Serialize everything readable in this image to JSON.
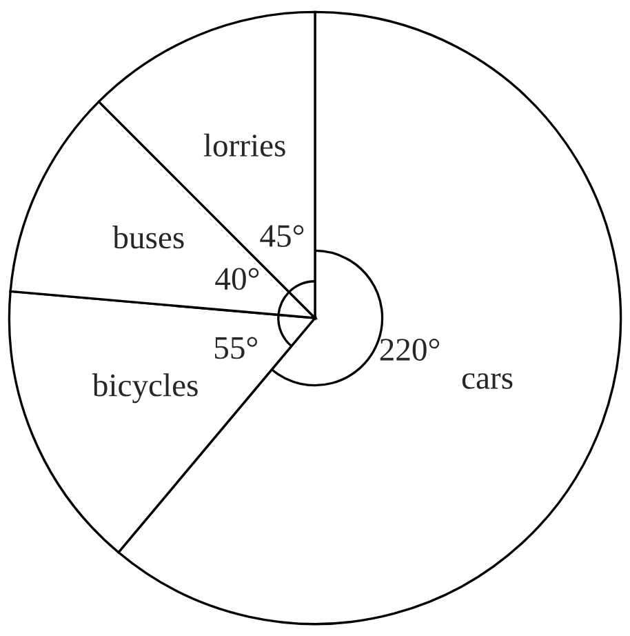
{
  "chart_data": {
    "type": "pie",
    "categories": [
      "cars",
      "bicycles",
      "buses",
      "lorries"
    ],
    "values": [
      220,
      55,
      40,
      45
    ],
    "colors": [
      "#ffffff",
      "#ffffff",
      "#ffffff",
      "#ffffff"
    ],
    "value_labels": [
      "220°",
      "55°",
      "40°",
      "45°"
    ],
    "legend": false
  }
}
